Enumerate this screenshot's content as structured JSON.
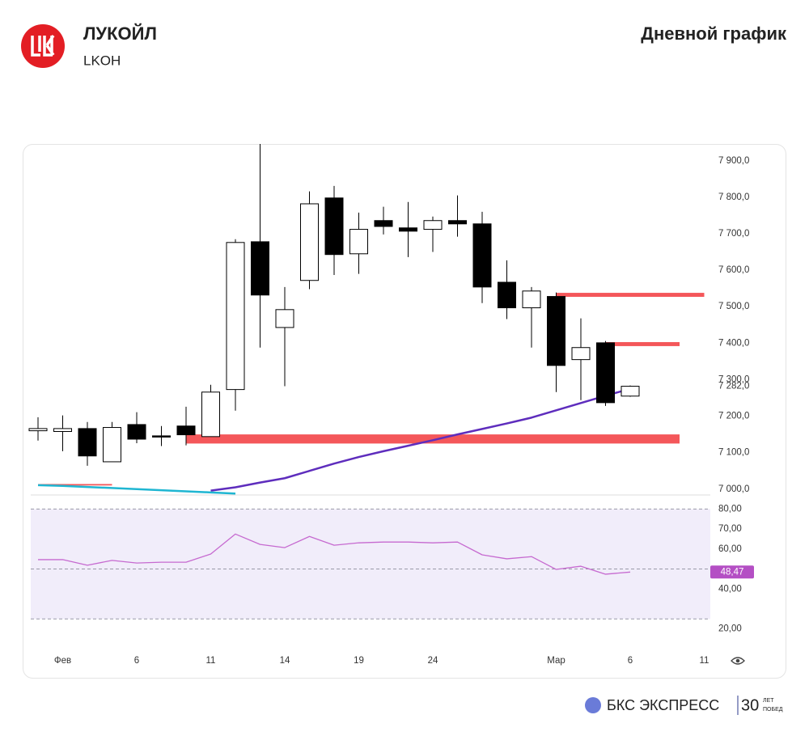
{
  "header": {
    "title": "ЛУКОЙЛ",
    "ticker": "LKOH",
    "chart_label": "Дневной график"
  },
  "footer": {
    "brand": "БКС ЭКСПРЕСС",
    "years": "30",
    "years_caption": [
      "ЛЕТ",
      "ПОБЕД"
    ]
  },
  "chart_data": [
    {
      "type": "candlestick",
      "categories": [
        null,
        "Фев",
        null,
        null,
        "6",
        null,
        null,
        "11",
        null,
        null,
        "14",
        null,
        null,
        "19",
        null,
        null,
        "24",
        null,
        null,
        null,
        null,
        "Мар",
        null,
        null,
        "6",
        null,
        null,
        "11"
      ],
      "open": [
        7160,
        7158,
        7166,
        7075,
        7177,
        7146,
        7173,
        7144,
        7273,
        7678,
        7443,
        7572,
        7798,
        7645,
        7736,
        7716,
        7712,
        7736,
        7727,
        7567,
        7497,
        7528,
        7355,
        7401,
        7255,
        null,
        null,
        null
      ],
      "high": [
        7197,
        7202,
        7184,
        7184,
        7211,
        7173,
        7226,
        7286,
        7685,
        7946,
        7554,
        7816,
        7831,
        7758,
        7774,
        7787,
        7747,
        7805,
        7760,
        7627,
        7554,
        7539,
        7468,
        7406,
        7284,
        null,
        null,
        null
      ],
      "low": [
        7133,
        7104,
        7064,
        7075,
        7126,
        7118,
        7120,
        7144,
        7215,
        7388,
        7282,
        7548,
        7587,
        7590,
        7698,
        7636,
        7650,
        7692,
        7510,
        7466,
        7388,
        7266,
        7244,
        7228,
        7253,
        null,
        null,
        null
      ],
      "close": [
        7166,
        7166,
        7091,
        7169,
        7137,
        7144,
        7149,
        7266,
        7676,
        7532,
        7492,
        7782,
        7643,
        7712,
        7720,
        7707,
        7736,
        7727,
        7554,
        7497,
        7543,
        7339,
        7388,
        7237,
        7282,
        null,
        null,
        null
      ],
      "last_label": "7 282,0",
      "up_color": "#ffffff",
      "down_color": "#000000",
      "overlays": [
        {
          "color": "#5e2dbd",
          "values": [
            null,
            null,
            null,
            null,
            null,
            null,
            null,
            6996,
            7005,
            7018,
            7030,
            7050,
            7070,
            7088,
            7104,
            7119,
            7134,
            7150,
            7165,
            7180,
            7196,
            7216,
            7236,
            7256,
            7275,
            null,
            null,
            null
          ]
        },
        {
          "color": "#1fb6d2",
          "values": [
            7011,
            7009,
            7006,
            7003,
            7000,
            6997,
            6994,
            6991,
            6988,
            null,
            null,
            null,
            null,
            null,
            null,
            null,
            null,
            null,
            null,
            null,
            null,
            null,
            null,
            null,
            null,
            null,
            null,
            null
          ]
        }
      ],
      "levels": [
        {
          "low": 7125,
          "high": 7150,
          "from": 6,
          "to": 26
        },
        {
          "low": 7527,
          "high": 7538,
          "from": 21,
          "to": 27
        },
        {
          "low": 7392,
          "high": 7403,
          "from": 23,
          "to": 26
        },
        {
          "low": 7010,
          "high": 7014,
          "from": 0,
          "to": 3
        }
      ],
      "level_color": "#f4575a",
      "ylim": [
        6984,
        7946
      ],
      "yticks": [
        {
          "value": 7900,
          "label": "7 900,0"
        },
        {
          "value": 7800,
          "label": "7 800,0"
        },
        {
          "value": 7700,
          "label": "7 700,0"
        },
        {
          "value": 7600,
          "label": "7 600,0"
        },
        {
          "value": 7500,
          "label": "7 500,0"
        },
        {
          "value": 7400,
          "label": "7 400,0"
        },
        {
          "value": 7300,
          "label": "7 300,0"
        },
        {
          "value": 7200,
          "label": "7 200,0"
        },
        {
          "value": 7100,
          "label": "7 100,0"
        },
        {
          "value": 7000,
          "label": "7 000,0"
        }
      ]
    },
    {
      "type": "line",
      "color": "#c66ad0",
      "values": [
        54.7,
        54.7,
        51.9,
        54.3,
        53.0,
        53.4,
        53.4,
        57.5,
        67.5,
        62.3,
        60.7,
        66.3,
        61.9,
        63.1,
        63.5,
        63.5,
        63.1,
        63.5,
        57.1,
        55.1,
        56.2,
        49.8,
        51.4,
        47.4,
        48.47,
        null,
        null,
        null
      ],
      "last_label": "48,47",
      "band": [
        25,
        80
      ],
      "midline": 50,
      "ylim": [
        15,
        83
      ],
      "yticks": [
        {
          "value": 80,
          "label": "80,00"
        },
        {
          "value": 70,
          "label": "70,00"
        },
        {
          "value": 60,
          "label": "60,00"
        },
        {
          "value": 40,
          "label": "40,00"
        },
        {
          "value": 20,
          "label": "20,00"
        }
      ]
    }
  ]
}
